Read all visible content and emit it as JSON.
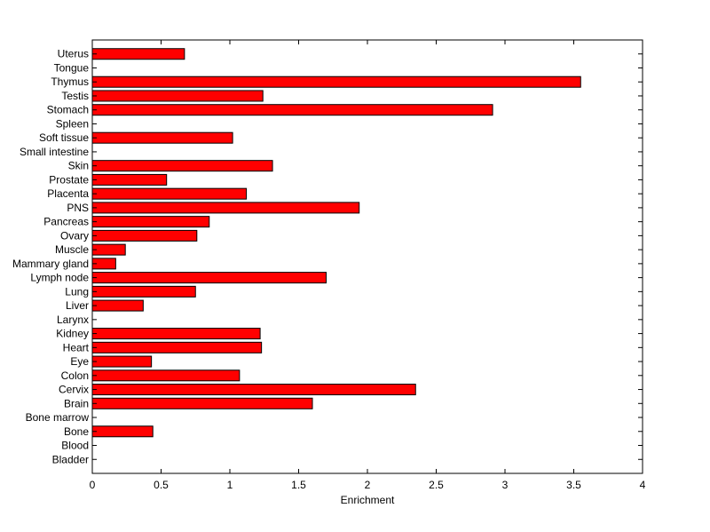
{
  "chart_data": {
    "type": "bar",
    "orientation": "horizontal",
    "categories": [
      "Bladder",
      "Blood",
      "Bone",
      "Bone marrow",
      "Brain",
      "Cervix",
      "Colon",
      "Eye",
      "Heart",
      "Kidney",
      "Larynx",
      "Liver",
      "Lung",
      "Lymph node",
      "Mammary gland",
      "Muscle",
      "Ovary",
      "Pancreas",
      "PNS",
      "Placenta",
      "Prostate",
      "Skin",
      "Small intestine",
      "Soft tissue",
      "Spleen",
      "Stomach",
      "Testis",
      "Thymus",
      "Tongue",
      "Uterus"
    ],
    "values": [
      0,
      0,
      0.44,
      0,
      1.6,
      2.35,
      1.07,
      0.43,
      1.23,
      1.22,
      0,
      0.37,
      0.75,
      1.7,
      0.17,
      0.24,
      0.76,
      0.85,
      1.94,
      1.12,
      0.54,
      1.31,
      0,
      1.02,
      0,
      2.91,
      1.24,
      3.55,
      0,
      0.67
    ],
    "xlabel": "Enrichment",
    "ylabel": "",
    "title": "",
    "xlim": [
      0,
      4
    ],
    "xticks": [
      "0",
      "0.5",
      "1",
      "1.5",
      "2",
      "2.5",
      "3",
      "3.5",
      "4"
    ],
    "grid": false,
    "bar_color": "#ff0000",
    "edge_color": "#000000"
  }
}
